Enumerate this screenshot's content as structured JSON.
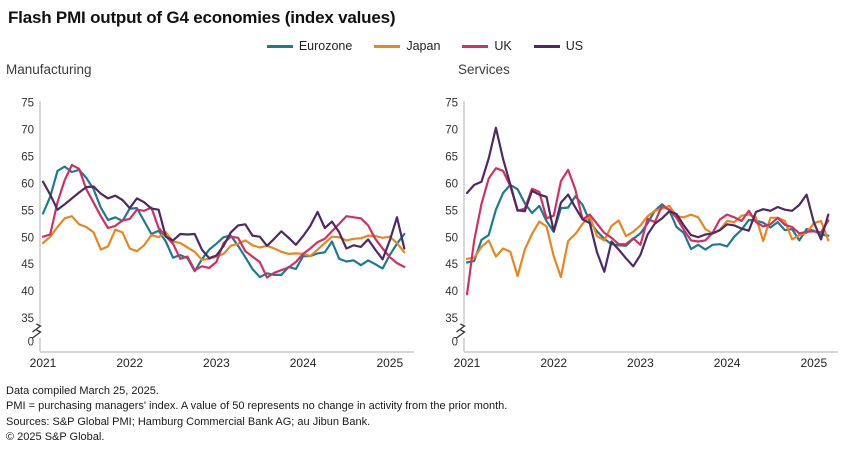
{
  "title": "Flash PMI output of G4 economies (index values)",
  "legend": [
    {
      "label": "Eurozone",
      "color": "#1d7b8f"
    },
    {
      "label": "Japan",
      "color": "#e8871f"
    },
    {
      "label": "UK",
      "color": "#d13063"
    },
    {
      "label": "US",
      "color": "#4e2a63"
    }
  ],
  "footer": {
    "lines": [
      "Data compiled March 25, 2025.",
      "PMI = purchasing managers' index. A value of 50 represents no change in activity from the prior month.",
      "Sources: S&P Global PMI; Hamburg Commercial Bank AG; au Jibun Bank.",
      "© 2025 S&P Global."
    ]
  },
  "chart_data": [
    {
      "type": "line",
      "panel": "Manufacturing",
      "x_unit": "month",
      "x_range": [
        "2021-01",
        "2025-03"
      ],
      "x_tick_labels": [
        "2021",
        "2022",
        "2023",
        "2024",
        "2025"
      ],
      "y_ticks": [
        0,
        35,
        40,
        45,
        50,
        55,
        60,
        65,
        70,
        75
      ],
      "y_axis_break": true,
      "ylim_display": [
        35,
        75
      ],
      "grid": false,
      "legend_position": "top",
      "series": [
        {
          "name": "Eurozone",
          "color": "#1d7b8f",
          "values": [
            54.5,
            57.6,
            62.4,
            63.2,
            62.2,
            62.6,
            61.1,
            59.0,
            55.6,
            53.3,
            53.8,
            53.1,
            55.4,
            55.5,
            53.1,
            50.7,
            51.3,
            49.3,
            46.3,
            46.8,
            46.2,
            43.8,
            46.0,
            47.8,
            48.9,
            50.1,
            50.4,
            48.5,
            46.4,
            44.2,
            42.7,
            43.4,
            43.1,
            43.1,
            44.6,
            44.2,
            46.6,
            46.6,
            47.1,
            47.3,
            49.3,
            46.1,
            45.6,
            45.8,
            44.9,
            45.8,
            45.1,
            44.3,
            46.8,
            48.9,
            50.7
          ]
        },
        {
          "name": "Japan",
          "color": "#e8871f",
          "values": [
            49.0,
            50.2,
            52.0,
            53.6,
            54.0,
            52.5,
            52.0,
            51.0,
            47.8,
            48.4,
            51.5,
            51.0,
            48.0,
            47.5,
            48.6,
            50.5,
            50.1,
            51.0,
            49.3,
            49.0,
            48.2,
            47.4,
            45.9,
            46.1,
            46.5,
            47.0,
            48.5,
            48.9,
            49.5,
            48.6,
            48.2,
            48.5,
            48.0,
            47.4,
            47.0,
            47.1,
            47.0,
            46.6,
            47.8,
            49.0,
            50.2,
            50.1,
            49.5,
            49.8,
            49.9,
            50.4,
            50.3,
            50.0,
            50.2,
            49.0,
            47.3
          ]
        },
        {
          "name": "UK",
          "color": "#d13063",
          "values": [
            50.2,
            50.6,
            56.6,
            60.7,
            63.5,
            62.8,
            59.0,
            56.5,
            54.0,
            51.8,
            52.2,
            53.2,
            53.5,
            55.2,
            55.0,
            55.6,
            51.8,
            50.3,
            48.9,
            46.1,
            46.5,
            44.0,
            44.7,
            44.4,
            45.5,
            49.0,
            50.2,
            50.0,
            47.5,
            46.5,
            45.5,
            42.6,
            43.5,
            44.0,
            44.5,
            45.5,
            47.0,
            48.0,
            49.2,
            49.8,
            51.2,
            52.6,
            54.0,
            53.8,
            53.6,
            52.3,
            49.8,
            48.0,
            46.4,
            45.3,
            44.6
          ]
        },
        {
          "name": "US",
          "color": "#4e2a63",
          "values": [
            60.4,
            58.0,
            55.2,
            56.2,
            57.3,
            58.4,
            59.4,
            59.5,
            58.2,
            57.3,
            57.8,
            57.0,
            55.5,
            57.3,
            56.6,
            55.4,
            55.2,
            50.2,
            49.5,
            50.7,
            50.6,
            50.7,
            47.8,
            46.2,
            46.7,
            48.5,
            51.0,
            52.3,
            52.5,
            50.4,
            50.2,
            48.5,
            49.8,
            51.2,
            50.0,
            48.7,
            50.3,
            52.2,
            54.8,
            51.8,
            53.0,
            51.0,
            48.0,
            48.6,
            48.3,
            49.7,
            47.8,
            46.0,
            49.5,
            53.8,
            48.0
          ]
        }
      ]
    },
    {
      "type": "line",
      "panel": "Services",
      "x_unit": "month",
      "x_range": [
        "2021-01",
        "2025-03"
      ],
      "x_tick_labels": [
        "2021",
        "2022",
        "2023",
        "2024",
        "2025"
      ],
      "y_ticks": [
        0,
        35,
        40,
        45,
        50,
        55,
        60,
        65,
        70,
        75
      ],
      "y_axis_break": true,
      "ylim_display": [
        35,
        75
      ],
      "grid": false,
      "legend_position": "top",
      "series": [
        {
          "name": "Eurozone",
          "color": "#1d7b8f",
          "values": [
            45.4,
            45.7,
            49.6,
            50.5,
            55.2,
            58.3,
            59.8,
            59.0,
            56.4,
            54.6,
            55.9,
            53.1,
            51.1,
            55.5,
            55.6,
            57.7,
            56.1,
            53.0,
            51.2,
            49.8,
            48.8,
            48.6,
            48.5,
            49.8,
            50.8,
            52.7,
            55.0,
            56.2,
            55.1,
            52.0,
            50.9,
            47.9,
            48.7,
            47.8,
            48.7,
            48.8,
            48.4,
            50.2,
            51.5,
            53.3,
            53.2,
            52.8,
            51.9,
            52.9,
            51.4,
            51.6,
            49.5,
            51.6,
            51.3,
            50.6,
            50.4
          ]
        },
        {
          "name": "Japan",
          "color": "#e8871f",
          "values": [
            46.1,
            46.3,
            48.3,
            49.5,
            46.5,
            48.0,
            47.4,
            42.9,
            47.8,
            50.7,
            53.0,
            52.1,
            46.6,
            42.7,
            49.4,
            50.7,
            52.6,
            54.0,
            50.3,
            49.5,
            52.2,
            53.2,
            50.3,
            51.1,
            52.3,
            54.0,
            55.0,
            55.4,
            55.9,
            54.0,
            53.8,
            54.3,
            53.8,
            51.6,
            50.8,
            51.5,
            53.1,
            52.9,
            54.1,
            54.3,
            53.8,
            49.4,
            53.7,
            53.7,
            53.1,
            49.7,
            50.5,
            50.9,
            52.7,
            53.1,
            49.5
          ]
        },
        {
          "name": "UK",
          "color": "#d13063",
          "values": [
            39.5,
            49.5,
            56.3,
            61.0,
            62.9,
            62.4,
            59.6,
            55.0,
            55.4,
            59.1,
            58.5,
            53.6,
            54.1,
            60.5,
            62.6,
            58.9,
            53.4,
            54.3,
            52.6,
            50.9,
            50.0,
            48.8,
            48.8,
            49.9,
            48.7,
            53.5,
            52.9,
            55.9,
            55.2,
            53.7,
            51.5,
            49.5,
            49.3,
            49.5,
            50.9,
            53.4,
            54.3,
            53.8,
            53.1,
            55.0,
            52.9,
            52.1,
            52.5,
            53.7,
            52.4,
            52.0,
            50.8,
            51.1,
            51.2,
            51.0,
            53.2
          ]
        },
        {
          "name": "US",
          "color": "#4e2a63",
          "values": [
            58.3,
            59.8,
            60.4,
            64.7,
            70.4,
            64.6,
            59.9,
            55.1,
            54.9,
            58.7,
            58.0,
            57.6,
            51.2,
            56.5,
            58.0,
            55.6,
            53.4,
            52.7,
            47.3,
            43.7,
            49.3,
            47.8,
            46.2,
            44.7,
            46.8,
            50.6,
            52.6,
            53.6,
            54.9,
            54.4,
            52.3,
            50.5,
            50.1,
            50.6,
            50.8,
            51.4,
            52.5,
            52.3,
            51.7,
            51.3,
            54.8,
            55.3,
            55.0,
            55.7,
            55.2,
            55.0,
            56.1,
            58.0,
            52.9,
            49.7,
            54.3
          ]
        }
      ]
    }
  ]
}
